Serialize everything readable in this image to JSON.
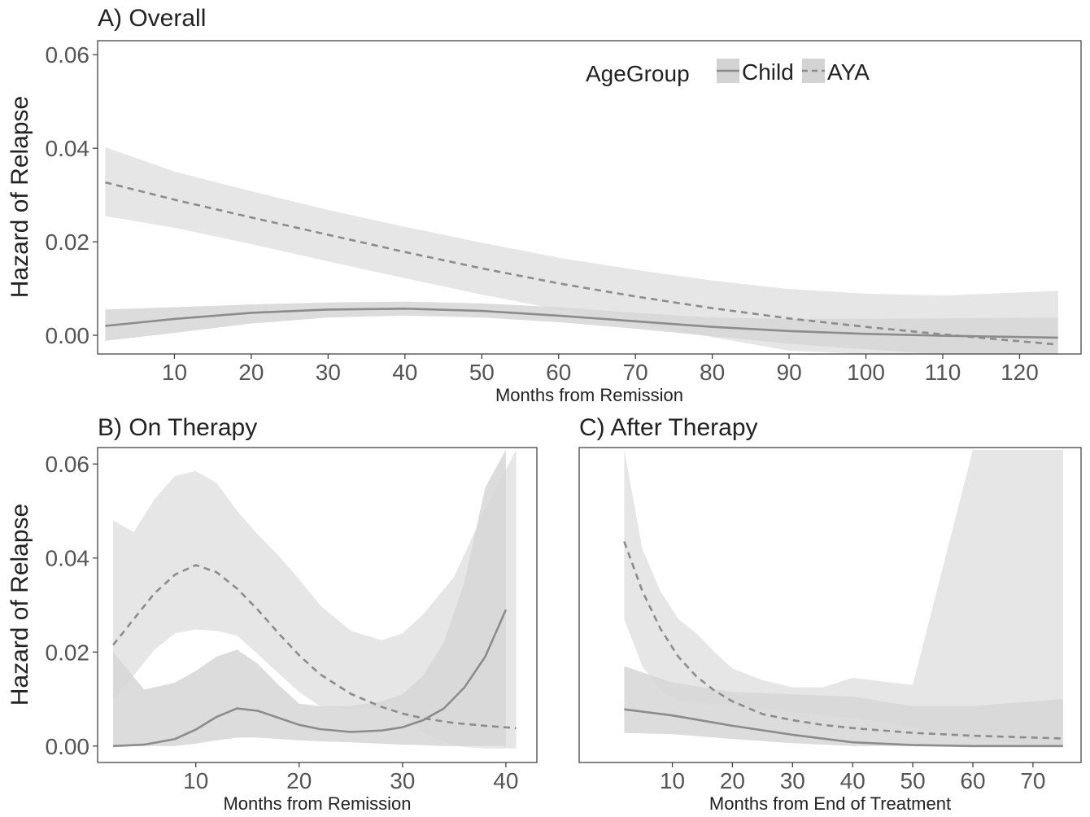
{
  "chart_data": [
    {
      "panel": "A",
      "type": "line",
      "title": "A) Overall",
      "xlabel": "Months from Remission",
      "ylabel": "Hazard of Relapse",
      "xlim": [
        0,
        128
      ],
      "ylim": [
        -0.004,
        0.063
      ],
      "x_ticks": [
        10,
        20,
        30,
        40,
        50,
        60,
        70,
        80,
        90,
        100,
        110,
        120
      ],
      "y_ticks": [
        "0.00",
        "0.02",
        "0.04",
        "0.06"
      ],
      "grid": false,
      "legend": {
        "title": "AgeGroup",
        "placement": "top-right inside",
        "entries": [
          {
            "label": "Child",
            "style": "solid"
          },
          {
            "label": "AYA",
            "style": "dashed"
          }
        ]
      },
      "series": [
        {
          "name": "Child",
          "style": "solid",
          "x": [
            1,
            10,
            20,
            30,
            40,
            50,
            60,
            70,
            80,
            90,
            100,
            110,
            125
          ],
          "y": [
            0.002,
            0.0035,
            0.0048,
            0.0055,
            0.0057,
            0.0052,
            0.0042,
            0.003,
            0.0018,
            0.0009,
            0.0003,
            -0.0001,
            -0.0005
          ],
          "lower": [
            -0.0012,
            0.0005,
            0.0025,
            0.0038,
            0.0042,
            0.0038,
            0.0028,
            0.0014,
            -0.0002,
            -0.0018,
            -0.003,
            -0.004,
            -0.004
          ],
          "upper": [
            0.0055,
            0.006,
            0.0066,
            0.007,
            0.0072,
            0.0068,
            0.006,
            0.0048,
            0.0038,
            0.0035,
            0.0035,
            0.0036,
            0.0038
          ]
        },
        {
          "name": "AYA",
          "style": "dashed",
          "x": [
            1,
            10,
            20,
            30,
            40,
            50,
            60,
            70,
            80,
            90,
            100,
            110,
            125
          ],
          "y": [
            0.0327,
            0.029,
            0.0252,
            0.0215,
            0.0178,
            0.0143,
            0.0111,
            0.0083,
            0.0058,
            0.0036,
            0.0018,
            0.0002,
            -0.002
          ],
          "lower": [
            0.0255,
            0.023,
            0.0195,
            0.0158,
            0.0122,
            0.0087,
            0.0055,
            0.0025,
            -0.0004,
            -0.0033,
            -0.004,
            -0.004,
            -0.004
          ],
          "upper": [
            0.0402,
            0.035,
            0.0308,
            0.0268,
            0.0232,
            0.0198,
            0.0166,
            0.014,
            0.0117,
            0.0099,
            0.0089,
            0.0085,
            0.0095
          ]
        }
      ]
    },
    {
      "panel": "B",
      "type": "line",
      "title": "B) On Therapy",
      "xlabel": "Months from Remission",
      "ylabel": "Hazard of Relapse",
      "xlim": [
        0.5,
        43
      ],
      "ylim": [
        -0.0035,
        0.0635
      ],
      "x_ticks": [
        10,
        20,
        30,
        40
      ],
      "y_ticks": [
        "0.00",
        "0.02",
        "0.04",
        "0.06"
      ],
      "grid": false,
      "series": [
        {
          "name": "Child",
          "style": "solid",
          "x": [
            2,
            5,
            8,
            10,
            12,
            14,
            16,
            18,
            20,
            22,
            25,
            28,
            30,
            32,
            34,
            36,
            38,
            40
          ],
          "y": [
            0.0,
            0.0003,
            0.0015,
            0.0035,
            0.0062,
            0.008,
            0.0075,
            0.006,
            0.0045,
            0.0036,
            0.003,
            0.0033,
            0.004,
            0.0055,
            0.008,
            0.0125,
            0.019,
            0.029
          ],
          "lower": [
            0.0,
            0.0,
            0.0,
            0.0005,
            0.0012,
            0.0018,
            0.0018,
            0.0015,
            0.0012,
            0.001,
            0.0008,
            0.0005,
            0.0003,
            0.0002,
            0.0,
            0.0,
            0.0,
            0.0
          ],
          "upper": [
            0.02,
            0.012,
            0.0135,
            0.016,
            0.019,
            0.0205,
            0.0175,
            0.013,
            0.009,
            0.0085,
            0.0085,
            0.0095,
            0.011,
            0.015,
            0.022,
            0.035,
            0.055,
            0.063
          ]
        },
        {
          "name": "AYA",
          "style": "dashed",
          "x": [
            2,
            4,
            6,
            8,
            10,
            12,
            14,
            16,
            18,
            20,
            22,
            25,
            28,
            30,
            32,
            35,
            38,
            41
          ],
          "y": [
            0.0215,
            0.027,
            0.0325,
            0.0365,
            0.0385,
            0.037,
            0.0335,
            0.029,
            0.024,
            0.0193,
            0.0153,
            0.0111,
            0.0083,
            0.0069,
            0.0059,
            0.0049,
            0.0043,
            0.0038
          ],
          "lower": [
            0.01,
            0.015,
            0.0205,
            0.024,
            0.0248,
            0.0245,
            0.0235,
            0.0195,
            0.0155,
            0.0115,
            0.0085,
            0.008,
            0.008,
            0.007,
            0.003,
            0.0,
            -0.0005,
            -0.0005
          ],
          "upper": [
            0.048,
            0.0455,
            0.0525,
            0.0575,
            0.0585,
            0.056,
            0.05,
            0.045,
            0.0405,
            0.0355,
            0.03,
            0.0245,
            0.0225,
            0.024,
            0.028,
            0.036,
            0.0505,
            0.063
          ]
        }
      ]
    },
    {
      "panel": "C",
      "type": "line",
      "title": "C) After Therapy",
      "xlabel": "Months from End of Treatment",
      "ylabel": "",
      "xlim": [
        -5.5,
        78
      ],
      "ylim": [
        -0.0035,
        0.0635
      ],
      "x_ticks": [
        10,
        20,
        30,
        40,
        50,
        60,
        70
      ],
      "y_ticks": [],
      "grid": false,
      "series": [
        {
          "name": "Child",
          "style": "solid",
          "x": [
            2,
            10,
            20,
            30,
            40,
            50,
            60,
            70,
            75
          ],
          "y": [
            0.0078,
            0.0065,
            0.0043,
            0.0024,
            0.0008,
            0.0002,
            0.0,
            0.0,
            0.0
          ],
          "lower": [
            0.0028,
            0.0025,
            0.0015,
            0.0006,
            0.0,
            0.0,
            0.0,
            0.0,
            0.0
          ],
          "upper": [
            0.017,
            0.0135,
            0.0115,
            0.011,
            0.0105,
            0.0085,
            0.0085,
            0.0095,
            0.01
          ]
        },
        {
          "name": "AYA",
          "style": "dashed",
          "x": [
            2,
            5,
            8,
            11,
            14,
            17,
            20,
            25,
            30,
            35,
            40,
            50,
            60,
            70,
            75
          ],
          "y": [
            0.0435,
            0.033,
            0.025,
            0.019,
            0.0148,
            0.0118,
            0.0095,
            0.0068,
            0.0055,
            0.0045,
            0.0038,
            0.0028,
            0.0022,
            0.0018,
            0.0016
          ],
          "lower": [
            0.027,
            0.017,
            0.012,
            0.0095,
            0.0092,
            0.0089,
            0.0087,
            0.008,
            0.0071,
            0.0065,
            0.006,
            0.004,
            0.0015,
            0.0005,
            0.0
          ],
          "upper": [
            0.063,
            0.042,
            0.033,
            0.027,
            0.024,
            0.02,
            0.0165,
            0.014,
            0.0125,
            0.0125,
            0.0145,
            0.013,
            0.063,
            0.063,
            0.063
          ]
        }
      ]
    }
  ]
}
